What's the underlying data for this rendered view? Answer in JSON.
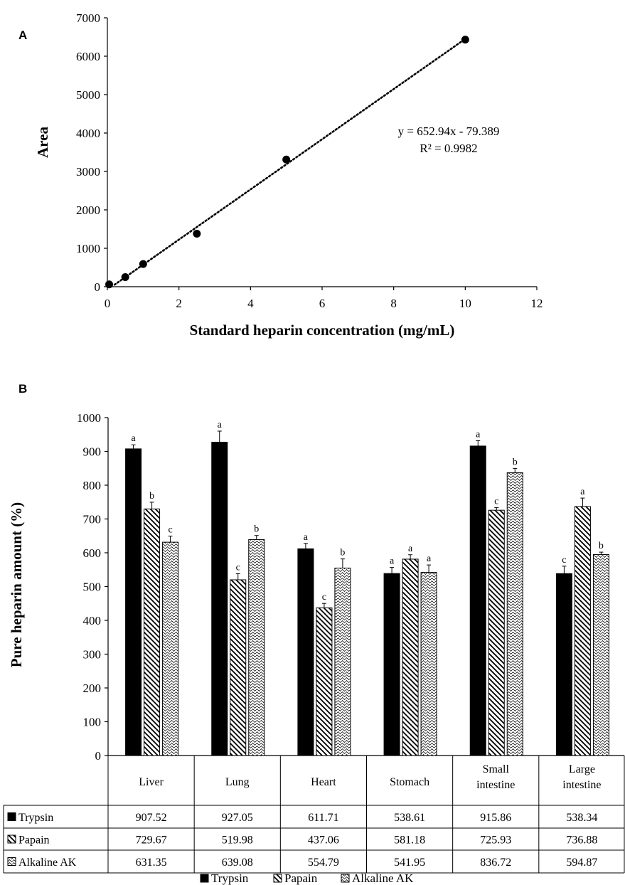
{
  "chart_data": [
    {
      "panel": "A",
      "type": "scatter",
      "xlabel": "Standard heparin concentration (mg/mL)",
      "ylabel": "Area",
      "xlim": [
        0,
        12
      ],
      "ylim": [
        0,
        7000
      ],
      "xticks": [
        0,
        2,
        4,
        6,
        8,
        10,
        12
      ],
      "yticks": [
        0,
        1000,
        2000,
        3000,
        4000,
        5000,
        6000,
        7000
      ],
      "points": [
        {
          "x": 0.05,
          "y": 60
        },
        {
          "x": 0.5,
          "y": 250
        },
        {
          "x": 1,
          "y": 590
        },
        {
          "x": 2.5,
          "y": 1380
        },
        {
          "x": 5,
          "y": 3310
        },
        {
          "x": 10,
          "y": 6430
        }
      ],
      "trendline": {
        "slope": 652.94,
        "intercept": -79.389,
        "style": "dotted"
      },
      "equation": "y = 652.94x - 79.389",
      "r_squared": "R² = 0.9982",
      "grid": false
    },
    {
      "panel": "B",
      "type": "bar",
      "ylabel": "Pure heparin amount (%)",
      "ylim": [
        0,
        1000
      ],
      "yticks": [
        0,
        100,
        200,
        300,
        400,
        500,
        600,
        700,
        800,
        900,
        1000
      ],
      "categories": [
        [
          "Liver"
        ],
        [
          "Lung"
        ],
        [
          "Heart"
        ],
        [
          "Stomach"
        ],
        [
          "Small",
          "intestine"
        ],
        [
          "Large",
          "intestine"
        ]
      ],
      "series": [
        {
          "name": "Trypsin",
          "pattern": "solid",
          "values": [
            907.52,
            927.05,
            611.71,
            538.61,
            915.86,
            538.34
          ],
          "value_labels": [
            "907.52",
            "927.05",
            "611.71",
            "538.61",
            "915.86",
            "538.34"
          ],
          "errors": [
            12,
            33,
            16,
            18,
            16,
            22
          ],
          "letters": [
            "a",
            "a",
            "a",
            "a",
            "a",
            "c"
          ]
        },
        {
          "name": "Papain",
          "pattern": "diagonal",
          "values": [
            729.67,
            519.98,
            437.06,
            581.18,
            725.93,
            736.88
          ],
          "value_labels": [
            "729.67",
            "519.98",
            "437.06",
            "581.18",
            "725.93",
            "736.88"
          ],
          "errors": [
            20,
            18,
            13,
            13,
            8,
            25
          ],
          "letters": [
            "b",
            "c",
            "c",
            "a",
            "c",
            "a"
          ]
        },
        {
          "name": "Alkaline AK",
          "pattern": "wave",
          "values": [
            631.35,
            639.08,
            554.79,
            541.95,
            836.72,
            594.87
          ],
          "value_labels": [
            "631.35",
            "639.08",
            "554.79",
            "541.95",
            "836.72",
            "594.87"
          ],
          "errors": [
            18,
            12,
            27,
            22,
            13,
            7
          ],
          "letters": [
            "c",
            "b",
            "b",
            "a",
            "b",
            "b"
          ]
        }
      ],
      "legend": {
        "placement": "bottom",
        "items": [
          "Trypsin",
          "Papain",
          "Alkaline AK"
        ]
      },
      "grid": false
    }
  ]
}
